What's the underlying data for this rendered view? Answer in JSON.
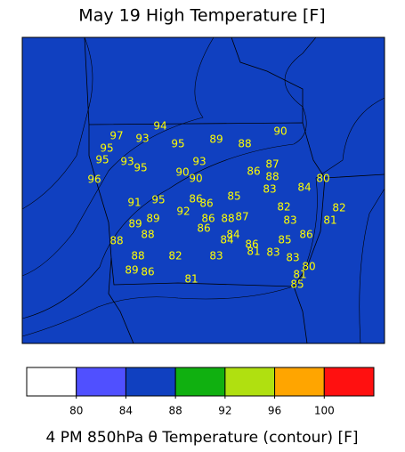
{
  "title": "May 19 High Temperature [F]",
  "caption": "4 PM 850hPa θ Temperature (contour) [F]",
  "colorbar": {
    "ticks": [
      80,
      84,
      88,
      92,
      96,
      100
    ],
    "colors": [
      "#ffffff",
      "#5050ff",
      "#1040c0",
      "#10b010",
      "#b0e010",
      "#ffa500",
      "#ff1010"
    ]
  },
  "stations": [
    97,
    93,
    94,
    95,
    95,
    89,
    88,
    90,
    95,
    93,
    95,
    93,
    90,
    90,
    86,
    87,
    88,
    96,
    83,
    84,
    80,
    85,
    86,
    86,
    91,
    95,
    92,
    82,
    82,
    89,
    89,
    86,
    88,
    87,
    83,
    81,
    88,
    86,
    84,
    84,
    86,
    85,
    86,
    88,
    81,
    83,
    88,
    82,
    83,
    83,
    80,
    89,
    86,
    81,
    81,
    85
  ]
}
